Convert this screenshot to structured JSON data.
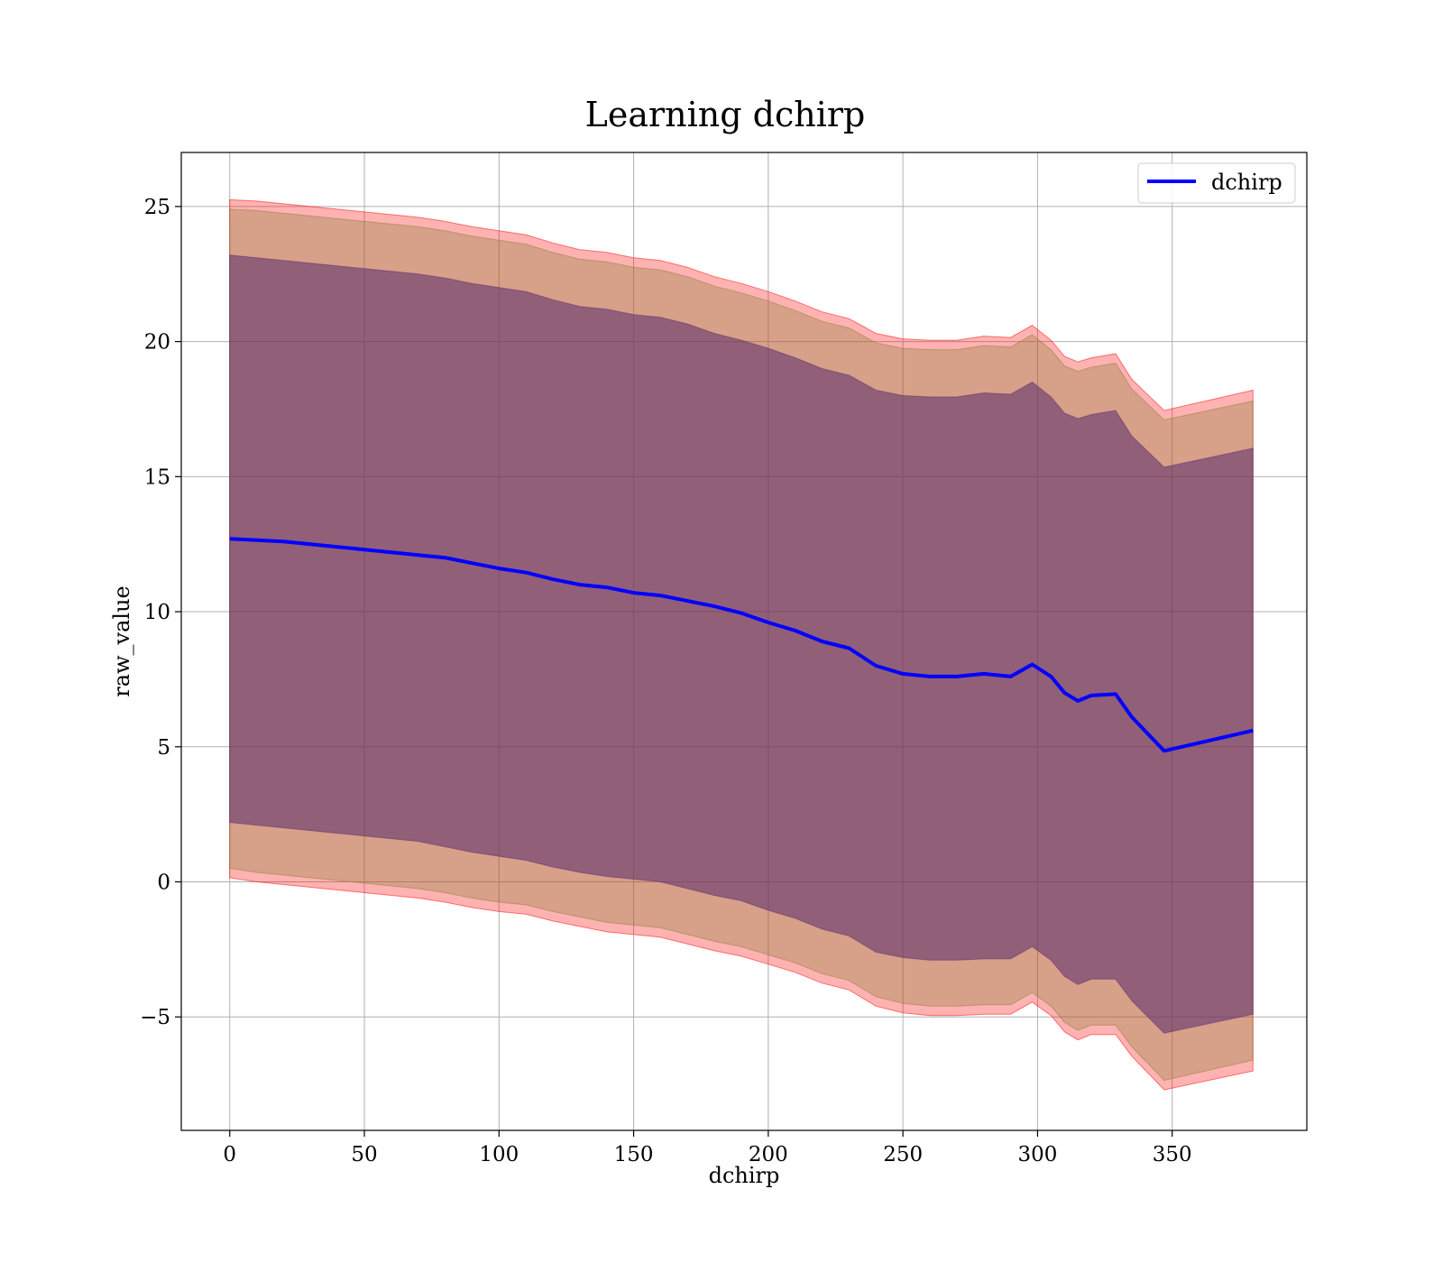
{
  "chart_data": {
    "type": "line",
    "title": "Learning dchirp",
    "xlabel": "dchirp",
    "ylabel": "raw_value",
    "xlim": [
      -18,
      400
    ],
    "ylim": [
      -9.2,
      27
    ],
    "xticks": [
      0,
      50,
      100,
      150,
      200,
      250,
      300,
      350
    ],
    "yticks": [
      -5,
      0,
      5,
      10,
      15,
      20,
      25
    ],
    "ytick_labels": [
      "−5",
      "0",
      "5",
      "10",
      "15",
      "20",
      "25"
    ],
    "grid": true,
    "legend": {
      "position": "top-right",
      "entries": [
        "dchirp"
      ]
    },
    "colors": {
      "line": "#0000ff",
      "band_outer": "#ff0000",
      "band_middle": "#8b7d3a",
      "band_inner": "#5a2a6e",
      "grid": "#b0b0b0"
    },
    "x": [
      0,
      10,
      20,
      30,
      40,
      50,
      60,
      70,
      80,
      90,
      100,
      110,
      120,
      130,
      140,
      150,
      160,
      170,
      180,
      190,
      200,
      210,
      220,
      230,
      240,
      250,
      260,
      270,
      280,
      290,
      298,
      305,
      310,
      315,
      320,
      329,
      335,
      347,
      380
    ],
    "series": [
      {
        "name": "dchirp",
        "values": [
          12.7,
          12.65,
          12.6,
          12.5,
          12.4,
          12.3,
          12.2,
          12.1,
          12.0,
          11.8,
          11.6,
          11.45,
          11.2,
          11.0,
          10.9,
          10.7,
          10.6,
          10.4,
          10.2,
          9.95,
          9.6,
          9.3,
          8.9,
          8.65,
          8.0,
          7.7,
          7.6,
          7.6,
          7.7,
          7.6,
          8.05,
          7.6,
          7.0,
          6.7,
          6.9,
          6.95,
          6.1,
          4.85,
          5.6
        ]
      }
    ],
    "bands": [
      {
        "lower": [
          0.15,
          0.0,
          -0.1,
          -0.2,
          -0.3,
          -0.4,
          -0.5,
          -0.6,
          -0.75,
          -0.95,
          -1.1,
          -1.2,
          -1.45,
          -1.65,
          -1.85,
          -1.95,
          -2.05,
          -2.3,
          -2.55,
          -2.75,
          -3.05,
          -3.35,
          -3.75,
          -4.0,
          -4.6,
          -4.85,
          -4.95,
          -4.95,
          -4.9,
          -4.9,
          -4.45,
          -4.95,
          -5.55,
          -5.85,
          -5.65,
          -5.65,
          -6.45,
          -7.7,
          -7.0
        ],
        "upper": [
          25.25,
          25.2,
          25.1,
          25.0,
          24.9,
          24.8,
          24.7,
          24.6,
          24.45,
          24.25,
          24.1,
          23.95,
          23.65,
          23.4,
          23.3,
          23.1,
          23.0,
          22.75,
          22.4,
          22.15,
          21.85,
          21.5,
          21.1,
          20.85,
          20.3,
          20.1,
          20.05,
          20.05,
          20.2,
          20.15,
          20.6,
          20.05,
          19.45,
          19.25,
          19.4,
          19.55,
          18.6,
          17.45,
          18.2
        ]
      },
      {
        "lower": [
          0.5,
          0.35,
          0.25,
          0.15,
          0.05,
          -0.05,
          -0.15,
          -0.25,
          -0.4,
          -0.6,
          -0.75,
          -0.85,
          -1.1,
          -1.3,
          -1.5,
          -1.6,
          -1.7,
          -1.95,
          -2.2,
          -2.4,
          -2.7,
          -3.0,
          -3.4,
          -3.65,
          -4.25,
          -4.5,
          -4.6,
          -4.6,
          -4.55,
          -4.55,
          -4.1,
          -4.6,
          -5.2,
          -5.5,
          -5.3,
          -5.3,
          -6.1,
          -7.35,
          -6.6
        ],
        "upper": [
          24.9,
          24.85,
          24.75,
          24.65,
          24.55,
          24.45,
          24.35,
          24.25,
          24.1,
          23.9,
          23.75,
          23.6,
          23.3,
          23.05,
          22.95,
          22.75,
          22.65,
          22.4,
          22.05,
          21.8,
          21.5,
          21.15,
          20.75,
          20.5,
          19.95,
          19.75,
          19.7,
          19.7,
          19.85,
          19.8,
          20.25,
          19.7,
          19.1,
          18.9,
          19.05,
          19.2,
          18.25,
          17.1,
          17.8
        ]
      },
      {
        "lower": [
          2.2,
          2.1,
          2.0,
          1.9,
          1.8,
          1.7,
          1.6,
          1.5,
          1.3,
          1.1,
          0.95,
          0.8,
          0.55,
          0.35,
          0.2,
          0.1,
          0.0,
          -0.25,
          -0.5,
          -0.7,
          -1.05,
          -1.35,
          -1.75,
          -2.0,
          -2.6,
          -2.8,
          -2.9,
          -2.9,
          -2.85,
          -2.85,
          -2.4,
          -2.9,
          -3.5,
          -3.8,
          -3.6,
          -3.6,
          -4.4,
          -5.6,
          -4.9
        ],
        "upper": [
          23.2,
          23.1,
          23.0,
          22.9,
          22.8,
          22.7,
          22.6,
          22.5,
          22.35,
          22.15,
          22.0,
          21.85,
          21.55,
          21.3,
          21.2,
          21.0,
          20.9,
          20.65,
          20.3,
          20.05,
          19.75,
          19.4,
          19.0,
          18.75,
          18.2,
          18.0,
          17.95,
          17.95,
          18.1,
          18.05,
          18.5,
          17.95,
          17.35,
          17.15,
          17.3,
          17.45,
          16.5,
          15.35,
          16.05
        ]
      }
    ]
  }
}
